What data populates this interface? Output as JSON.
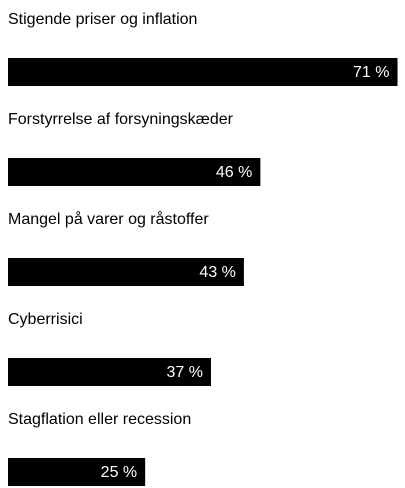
{
  "chart_data": {
    "type": "bar",
    "orientation": "horizontal",
    "categories": [
      "Stigende priser og inflation",
      "Forstyrrelse af forsyningskæder",
      "Mangel på varer og råstoffer",
      "Cyberrisici",
      "Stagflation eller recession"
    ],
    "values": [
      71,
      46,
      43,
      37,
      25
    ],
    "value_labels": [
      "71 %",
      "46 %",
      "43 %",
      "37 %",
      "25 %"
    ],
    "color": "#000000",
    "label_color": "#ffffff",
    "xlim": [
      0,
      72
    ]
  }
}
